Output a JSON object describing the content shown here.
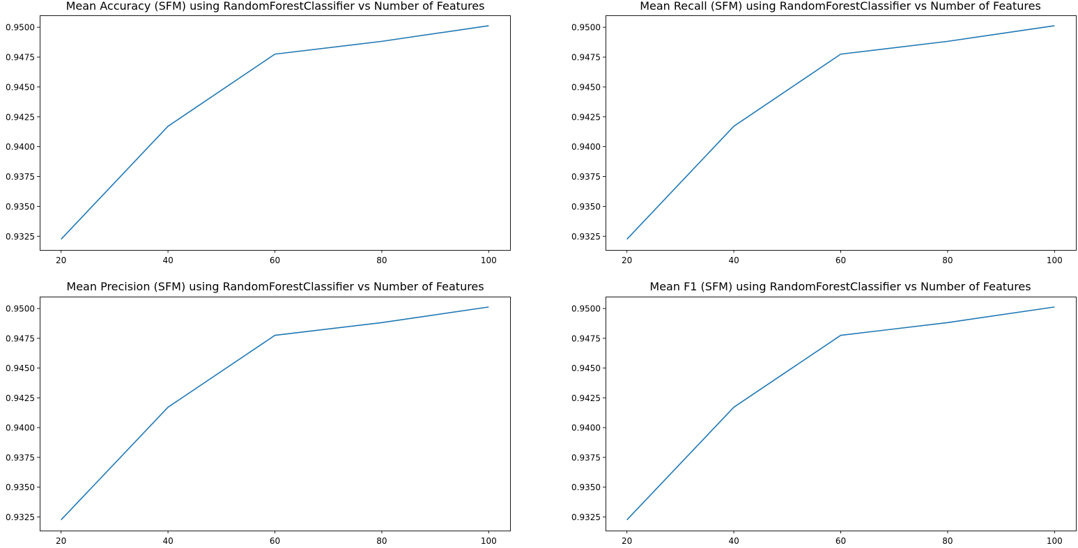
{
  "figure": {
    "line_color": "#1f77b4",
    "background": "#ffffff"
  },
  "chart_data": [
    {
      "type": "line",
      "title": "Mean Accuracy (SFM) using RandomForestClassifier vs Number of Features",
      "xlabel": "",
      "ylabel": "",
      "x": [
        20,
        40,
        60,
        80,
        100
      ],
      "series": [
        {
          "values": [
            0.93225,
            0.94171,
            0.94775,
            0.94882,
            0.95013
          ]
        }
      ],
      "xticks": [
        "20",
        "40",
        "60",
        "80",
        "100"
      ],
      "xtick_values": [
        20,
        40,
        60,
        80,
        100
      ],
      "yticks": [
        "0.9325",
        "0.9350",
        "0.9375",
        "0.9400",
        "0.9425",
        "0.9450",
        "0.9475",
        "0.9500"
      ],
      "ytick_values": [
        0.9325,
        0.935,
        0.9375,
        0.94,
        0.9425,
        0.945,
        0.9475,
        0.95
      ],
      "xlim": [
        16,
        104
      ],
      "ylim": [
        0.93135,
        0.951
      ],
      "grid": false,
      "legend": "none"
    },
    {
      "type": "line",
      "title": "Mean Recall (SFM) using RandomForestClassifier vs Number of Features",
      "xlabel": "",
      "ylabel": "",
      "x": [
        20,
        40,
        60,
        80,
        100
      ],
      "series": [
        {
          "values": [
            0.93225,
            0.94171,
            0.94775,
            0.94882,
            0.95013
          ]
        }
      ],
      "xticks": [
        "20",
        "40",
        "60",
        "80",
        "100"
      ],
      "xtick_values": [
        20,
        40,
        60,
        80,
        100
      ],
      "yticks": [
        "0.9325",
        "0.9350",
        "0.9375",
        "0.9400",
        "0.9425",
        "0.9450",
        "0.9475",
        "0.9500"
      ],
      "ytick_values": [
        0.9325,
        0.935,
        0.9375,
        0.94,
        0.9425,
        0.945,
        0.9475,
        0.95
      ],
      "xlim": [
        16,
        104
      ],
      "ylim": [
        0.93135,
        0.951
      ],
      "grid": false,
      "legend": "none"
    },
    {
      "type": "line",
      "title": "Mean Precision (SFM) using RandomForestClassifier vs Number of Features",
      "xlabel": "",
      "ylabel": "",
      "x": [
        20,
        40,
        60,
        80,
        100
      ],
      "series": [
        {
          "values": [
            0.93225,
            0.94171,
            0.94775,
            0.94882,
            0.95013
          ]
        }
      ],
      "xticks": [
        "20",
        "40",
        "60",
        "80",
        "100"
      ],
      "xtick_values": [
        20,
        40,
        60,
        80,
        100
      ],
      "yticks": [
        "0.9325",
        "0.9350",
        "0.9375",
        "0.9400",
        "0.9425",
        "0.9450",
        "0.9475",
        "0.9500"
      ],
      "ytick_values": [
        0.9325,
        0.935,
        0.9375,
        0.94,
        0.9425,
        0.945,
        0.9475,
        0.95
      ],
      "xlim": [
        16,
        104
      ],
      "ylim": [
        0.93135,
        0.951
      ],
      "grid": false,
      "legend": "none"
    },
    {
      "type": "line",
      "title": "Mean F1 (SFM) using RandomForestClassifier vs Number of Features",
      "xlabel": "",
      "ylabel": "",
      "x": [
        20,
        40,
        60,
        80,
        100
      ],
      "series": [
        {
          "values": [
            0.93225,
            0.94171,
            0.94775,
            0.94882,
            0.95013
          ]
        }
      ],
      "xticks": [
        "20",
        "40",
        "60",
        "80",
        "100"
      ],
      "xtick_values": [
        20,
        40,
        60,
        80,
        100
      ],
      "yticks": [
        "0.9325",
        "0.9350",
        "0.9375",
        "0.9400",
        "0.9425",
        "0.9450",
        "0.9475",
        "0.9500"
      ],
      "ytick_values": [
        0.9325,
        0.935,
        0.9375,
        0.94,
        0.9425,
        0.945,
        0.9475,
        0.95
      ],
      "xlim": [
        16,
        104
      ],
      "ylim": [
        0.93135,
        0.951
      ],
      "grid": false,
      "legend": "none"
    }
  ]
}
